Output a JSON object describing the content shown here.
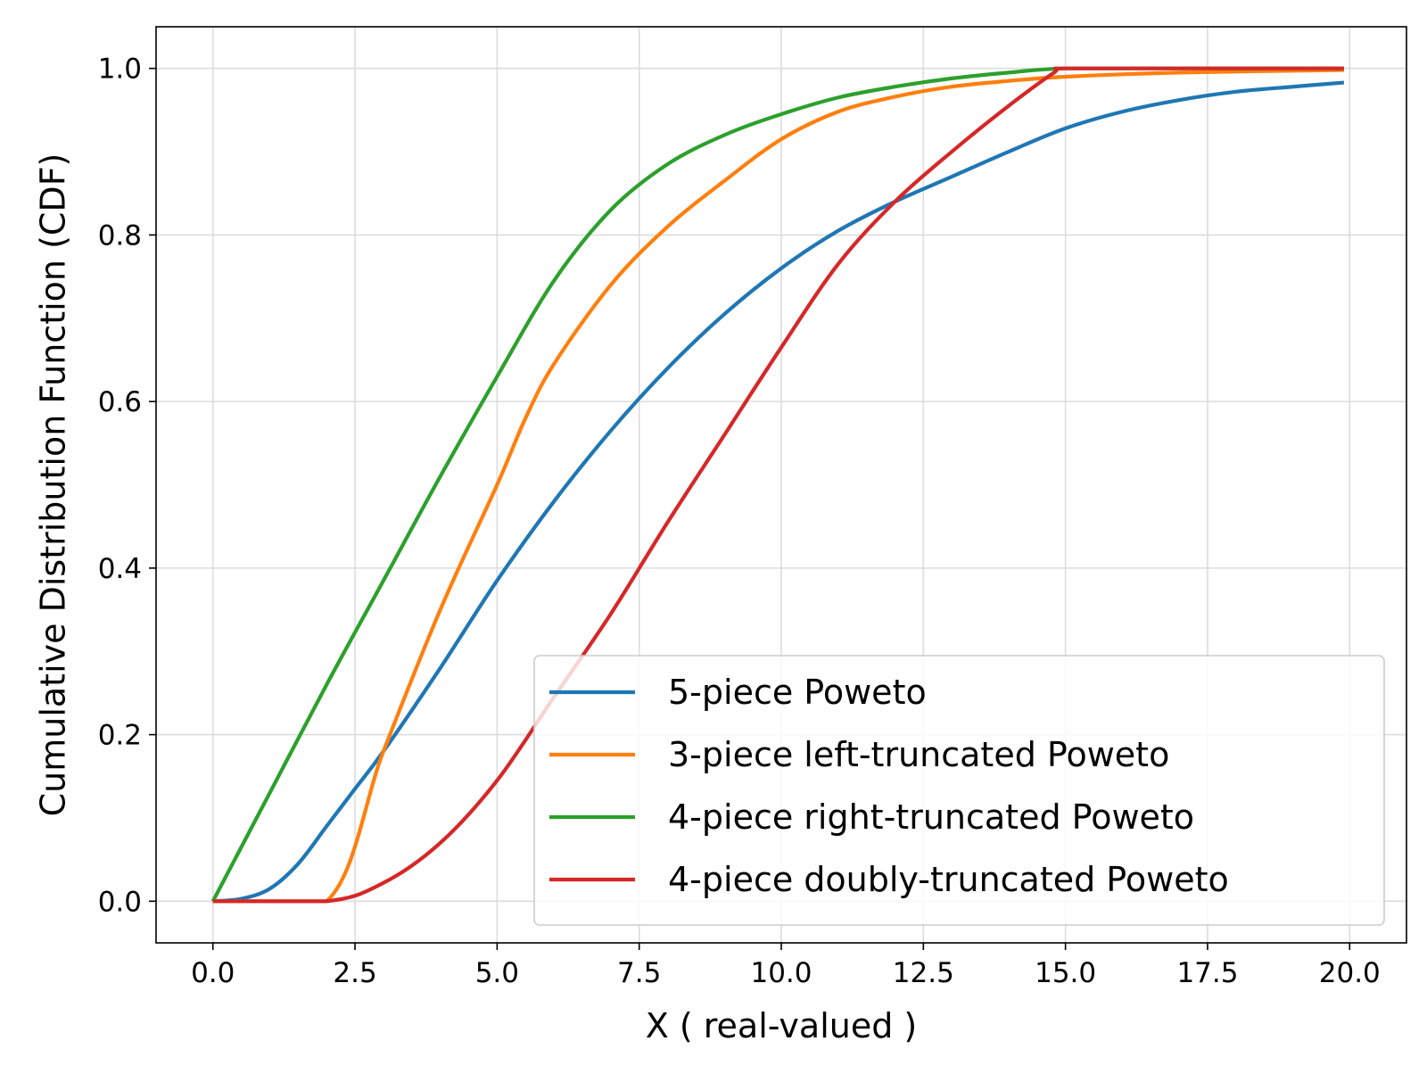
{
  "chart_data": {
    "type": "line",
    "xlabel": "X ( real-valued )",
    "ylabel": "Cumulative Distribution Function (CDF)",
    "xlim": [
      -1,
      21
    ],
    "ylim": [
      -0.05,
      1.05
    ],
    "grid": true,
    "legend_position": "lower-right",
    "x_ticks": [
      0.0,
      2.5,
      5.0,
      7.5,
      10.0,
      12.5,
      15.0,
      17.5,
      20.0
    ],
    "x_tick_labels": [
      "0.0",
      "2.5",
      "5.0",
      "7.5",
      "10.0",
      "12.5",
      "15.0",
      "17.5",
      "20.0"
    ],
    "y_ticks": [
      0.0,
      0.2,
      0.4,
      0.6,
      0.8,
      1.0
    ],
    "y_tick_labels": [
      "0.0",
      "0.2",
      "0.4",
      "0.6",
      "0.8",
      "1.0"
    ],
    "series": [
      {
        "name": "5-piece Poweto",
        "color": "#1f77b4",
        "x": [
          0,
          0.5,
          1.0,
          1.5,
          2.0,
          2.5,
          3.0,
          4.0,
          5.0,
          6.0,
          7.0,
          8.0,
          9.0,
          10.0,
          11.0,
          12.0,
          13.0,
          14.0,
          15.0,
          16.0,
          17.0,
          18.0,
          19.0,
          19.9
        ],
        "y": [
          0,
          0.003,
          0.015,
          0.045,
          0.09,
          0.135,
          0.18,
          0.28,
          0.385,
          0.48,
          0.565,
          0.64,
          0.705,
          0.76,
          0.805,
          0.84,
          0.87,
          0.9,
          0.928,
          0.948,
          0.962,
          0.972,
          0.978,
          0.983
        ]
      },
      {
        "name": "3-piece left-truncated Poweto",
        "color": "#ff7f0e",
        "x": [
          0,
          2.0,
          3.0,
          4.0,
          5.0,
          5.5,
          6.0,
          7.0,
          8.0,
          9.0,
          10.0,
          11.0,
          12.0,
          13.0,
          14.0,
          15.0,
          17.0,
          19.9
        ],
        "y": [
          0,
          0,
          0.18,
          0.35,
          0.5,
          0.58,
          0.645,
          0.74,
          0.81,
          0.865,
          0.915,
          0.948,
          0.966,
          0.978,
          0.985,
          0.99,
          0.995,
          0.998
        ]
      },
      {
        "name": "4-piece right-truncated Poweto",
        "color": "#2ca02c",
        "x": [
          0,
          1.0,
          2.0,
          3.0,
          4.0,
          5.0,
          6.0,
          7.0,
          8.0,
          9.0,
          10.0,
          11.0,
          12.0,
          13.0,
          14.0,
          15.0,
          17.0,
          19.9
        ],
        "y": [
          0,
          0.13,
          0.26,
          0.385,
          0.51,
          0.63,
          0.745,
          0.83,
          0.885,
          0.92,
          0.945,
          0.965,
          0.978,
          0.988,
          0.995,
          1.0,
          1.0,
          1.0
        ]
      },
      {
        "name": "4-piece doubly-truncated Poweto",
        "color": "#d62728",
        "x": [
          0,
          2.0,
          3.0,
          4.0,
          5.0,
          6.0,
          7.0,
          8.0,
          9.0,
          10.0,
          11.0,
          12.0,
          13.0,
          14.0,
          14.8,
          15.0,
          17.0,
          19.9
        ],
        "y": [
          0,
          0,
          0.022,
          0.07,
          0.145,
          0.245,
          0.345,
          0.455,
          0.56,
          0.665,
          0.765,
          0.84,
          0.9,
          0.955,
          0.995,
          1.0,
          1.0,
          1.0
        ]
      }
    ]
  }
}
